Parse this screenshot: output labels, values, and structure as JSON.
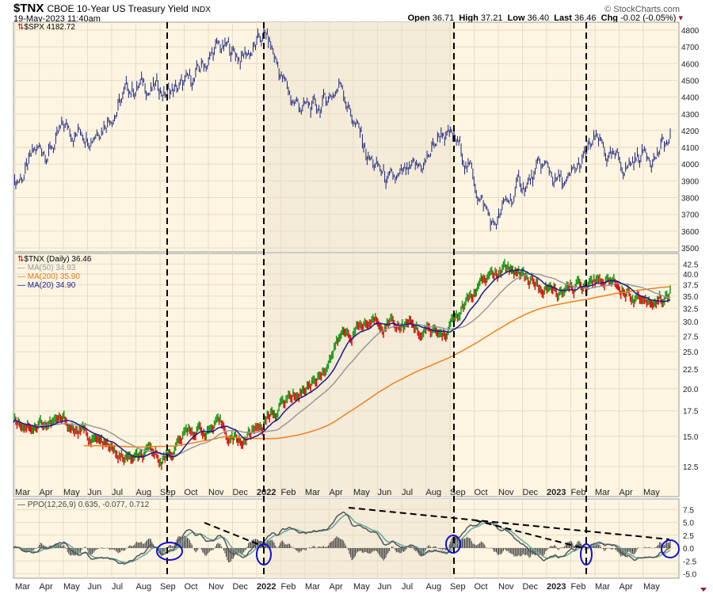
{
  "header": {
    "symbol": "$TNX",
    "name": "CBOE 10-Year US Treasury Yield",
    "exchange": "INDX",
    "date": "19-May-2023 11:40am",
    "copyright": "© StockCharts.com",
    "open_label": "Open",
    "open": "36.71",
    "high_label": "High",
    "high": "37.21",
    "low_label": "Low",
    "low": "36.40",
    "last_label": "Last",
    "last": "36.46",
    "chg_label": "Chg",
    "chg": "-0.02 (-0.05%)"
  },
  "legends": {
    "spx": "$SPX 4182.72",
    "tnx": "$TNX (Daily) 36.46",
    "ma50": "MA(50) 34.93",
    "ma200": "MA(200) 35.90",
    "ma20": "MA(20) 34.90",
    "ppo": "PPO(12,26,9) 0.635, -0.077, 0.712"
  },
  "colors": {
    "spx": "#1a237e",
    "up": "#1a9a1a",
    "down": "#e01010",
    "ma50": "#999999",
    "ma200": "#f08020",
    "ma20": "#1a1a8c",
    "ppo": "#555555",
    "signal": "#5fa8a0",
    "circle": "#1010d0",
    "bg": "#fdf5e1",
    "bg_shade": "#f4ebd8"
  },
  "chart_data": [
    {
      "type": "line",
      "title": "$SPX",
      "ylim": [
        3450,
        4850
      ],
      "yticks": [
        3500,
        3600,
        3700,
        3800,
        3900,
        4000,
        4100,
        4200,
        4300,
        4400,
        4500,
        4600,
        4700,
        4800
      ],
      "x": [
        "Mar",
        "Apr",
        "May",
        "Jun",
        "Jul",
        "Aug",
        "Sep",
        "Oct",
        "Nov",
        "Dec",
        "2022",
        "Feb",
        "Mar",
        "Apr",
        "May",
        "Jun",
        "Jul",
        "Aug",
        "Sep",
        "Oct",
        "Nov",
        "Dec",
        "2023",
        "Feb",
        "Mar",
        "Apr",
        "May"
      ],
      "values": [
        3900,
        4050,
        4180,
        4230,
        4380,
        4480,
        4430,
        4450,
        4680,
        4640,
        4750,
        4380,
        4300,
        4500,
        4050,
        3850,
        3900,
        4200,
        4000,
        3620,
        3850,
        3950,
        3850,
        4100,
        3950,
        4080,
        4120
      ],
      "last": 4182.72
    },
    {
      "type": "line",
      "title": "$TNX (Daily)",
      "scale": "log",
      "yticks": [
        12.5,
        15.0,
        17.5,
        20.0,
        22.5,
        25.0,
        27.5,
        30.0,
        32.5,
        35.0,
        37.5,
        40.0,
        42.5
      ],
      "values": [
        16.8,
        16.5,
        16.2,
        15.0,
        13.2,
        12.7,
        13.3,
        15.6,
        15.8,
        14.5,
        16.6,
        19.2,
        21.5,
        27.5,
        29.5,
        31.0,
        28.5,
        27.5,
        33.5,
        39.5,
        41.0,
        36.0,
        35.5,
        38.8,
        38.5,
        34.5,
        35.5
      ],
      "last": 36.46,
      "series": [
        {
          "name": "MA(50)",
          "last": 34.93
        },
        {
          "name": "MA(200)",
          "last": 35.9
        },
        {
          "name": "MA(20)",
          "last": 34.9
        }
      ]
    },
    {
      "type": "line",
      "title": "PPO(12,26,9)",
      "ylim": [
        -5.5,
        9
      ],
      "yticks": [
        -5.0,
        -2.5,
        0.0,
        2.5,
        5.0,
        7.5
      ],
      "values_last": [
        0.635,
        -0.077,
        0.712
      ]
    }
  ],
  "xlabels": [
    "Mar",
    "Apr",
    "May",
    "Jun",
    "Jul",
    "Aug",
    "Sep",
    "Oct",
    "Nov",
    "Dec",
    "2022",
    "Feb",
    "Mar",
    "Apr",
    "May",
    "Jun",
    "Jul",
    "Aug",
    "Sep",
    "Oct",
    "Nov",
    "Dec",
    "2023",
    "Feb",
    "Mar",
    "Apr",
    "May"
  ]
}
